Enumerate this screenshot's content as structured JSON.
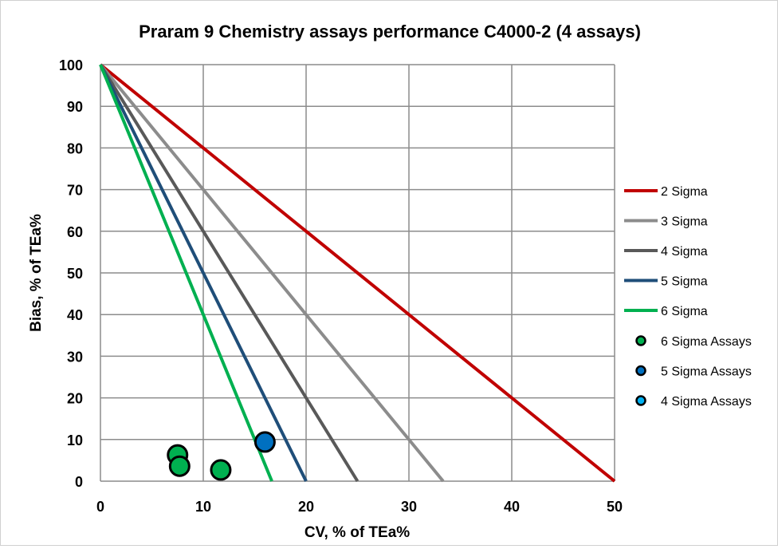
{
  "chart_data": {
    "type": "scatter",
    "title": "Praram 9 Chemistry assays performance C4000-2 (4 assays)",
    "xlabel": "CV, % of TEa%",
    "ylabel": "Bias, % of TEa%",
    "xlim": [
      0,
      50
    ],
    "ylim": [
      0,
      100
    ],
    "xticks": [
      "0",
      "10",
      "20",
      "30",
      "40",
      "50"
    ],
    "yticks": [
      "0",
      "10",
      "20",
      "30",
      "40",
      "50",
      "60",
      "70",
      "80",
      "90",
      "100"
    ],
    "grid": true,
    "legend_position": "right",
    "lines": [
      {
        "name": "2 Sigma",
        "color": "#c00000",
        "x": [
          0,
          50
        ],
        "y": [
          100,
          0
        ]
      },
      {
        "name": "3 Sigma",
        "color": "#8c8c8c",
        "x": [
          0,
          33.33
        ],
        "y": [
          100,
          0
        ]
      },
      {
        "name": "4 Sigma",
        "color": "#595959",
        "x": [
          0,
          25
        ],
        "y": [
          100,
          0
        ]
      },
      {
        "name": "5 Sigma",
        "color": "#1f4e79",
        "x": [
          0,
          20
        ],
        "y": [
          100,
          0
        ]
      },
      {
        "name": "6 Sigma",
        "color": "#00b050",
        "x": [
          0,
          16.67
        ],
        "y": [
          100,
          0
        ]
      }
    ],
    "series": [
      {
        "name": "6 Sigma Assays",
        "color": "#00b050",
        "points": [
          [
            7.5,
            6.3
          ],
          [
            7.7,
            3.6
          ],
          [
            11.7,
            2.7
          ]
        ]
      },
      {
        "name": "5 Sigma Assays",
        "color": "#0070c0",
        "points": [
          [
            16.0,
            9.4
          ]
        ]
      },
      {
        "name": "4 Sigma Assays",
        "color": "#00b0f0",
        "points": []
      }
    ]
  }
}
